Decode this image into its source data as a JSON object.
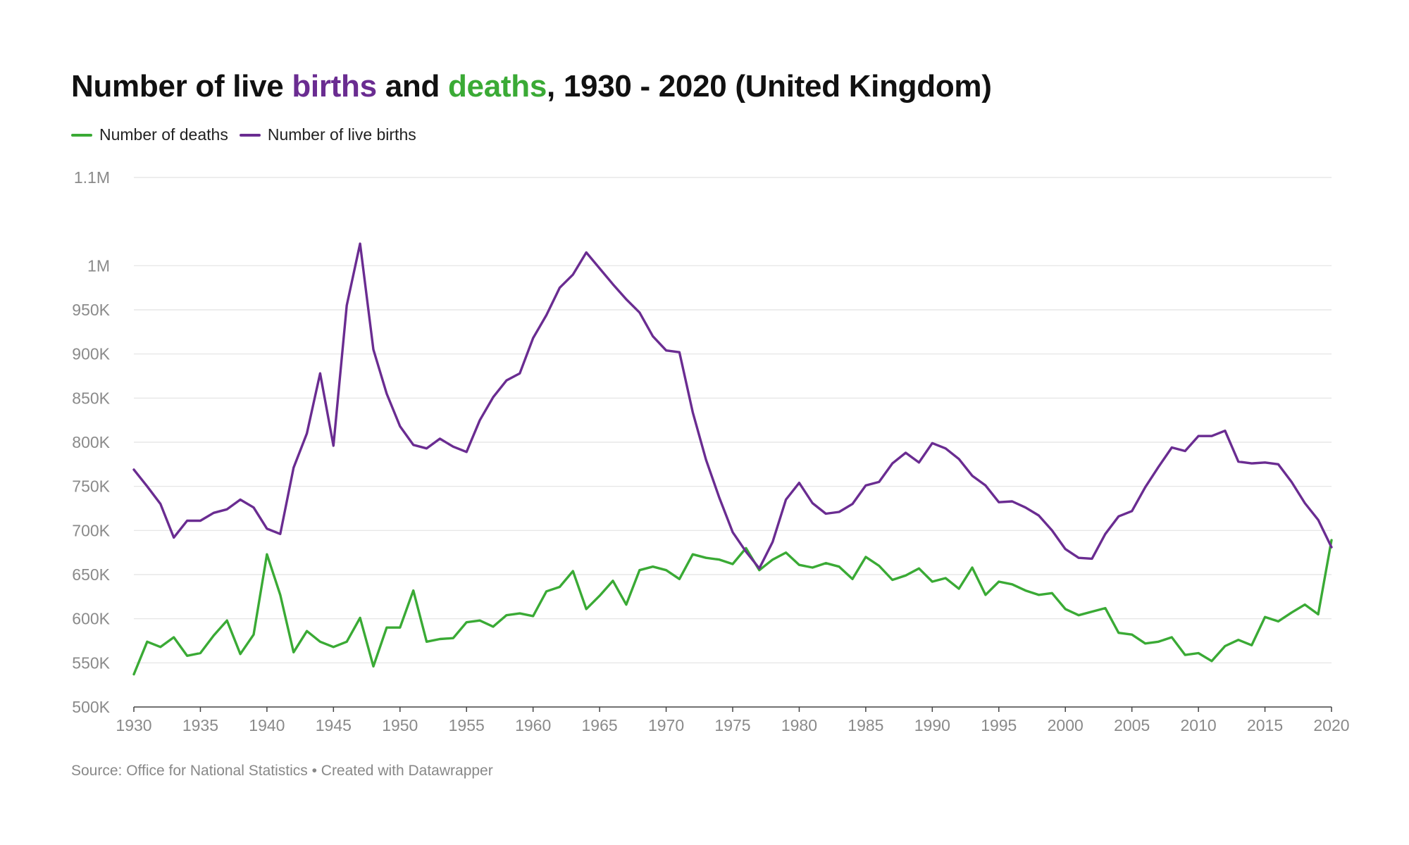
{
  "title": {
    "prefix": "Number of live ",
    "births_word": "births",
    "middle": " and ",
    "deaths_word": "deaths",
    "suffix": ", 1930 - 2020 (United Kingdom)"
  },
  "legend": [
    {
      "label": "Number of deaths",
      "color": "#3aaa35"
    },
    {
      "label": "Number of live births",
      "color": "#6a2c91"
    }
  ],
  "source": "Source: Office for National Statistics • Created with Datawrapper",
  "chart_data": {
    "type": "line",
    "x_label": "",
    "y_label": "",
    "xlim": [
      1930,
      2020
    ],
    "ylim": [
      500000,
      1100000
    ],
    "y_ticks": [
      500000,
      550000,
      600000,
      650000,
      700000,
      750000,
      800000,
      850000,
      900000,
      950000,
      1000000,
      1100000
    ],
    "y_tick_labels": [
      "500K",
      "550K",
      "600K",
      "650K",
      "700K",
      "750K",
      "800K",
      "850K",
      "900K",
      "950K",
      "1M",
      "1.1M"
    ],
    "x_ticks": [
      1930,
      1935,
      1940,
      1945,
      1950,
      1955,
      1960,
      1965,
      1970,
      1975,
      1980,
      1985,
      1990,
      1995,
      2000,
      2005,
      2010,
      2015,
      2020
    ],
    "x_tick_labels": [
      "1930",
      "1935",
      "1940",
      "1945",
      "1950",
      "1955",
      "1960",
      "1965",
      "1970",
      "1975",
      "1980",
      "1985",
      "1990",
      "1995",
      "2000",
      "2005",
      "2010",
      "2015",
      "2020"
    ],
    "grid": true,
    "legend_position": "top-left",
    "x": [
      1930,
      1931,
      1932,
      1933,
      1934,
      1935,
      1936,
      1937,
      1938,
      1939,
      1940,
      1941,
      1942,
      1943,
      1944,
      1945,
      1946,
      1947,
      1948,
      1949,
      1950,
      1951,
      1952,
      1953,
      1954,
      1955,
      1956,
      1957,
      1958,
      1959,
      1960,
      1961,
      1962,
      1963,
      1964,
      1965,
      1966,
      1967,
      1968,
      1969,
      1970,
      1971,
      1972,
      1973,
      1974,
      1975,
      1976,
      1977,
      1978,
      1979,
      1980,
      1981,
      1982,
      1983,
      1984,
      1985,
      1986,
      1987,
      1988,
      1989,
      1990,
      1991,
      1992,
      1993,
      1994,
      1995,
      1996,
      1997,
      1998,
      1999,
      2000,
      2001,
      2002,
      2003,
      2004,
      2005,
      2006,
      2007,
      2008,
      2009,
      2010,
      2011,
      2012,
      2013,
      2014,
      2015,
      2016,
      2017,
      2018,
      2019,
      2020
    ],
    "series": [
      {
        "name": "Number of deaths",
        "color": "#3aaa35",
        "values": [
          537000,
          574000,
          568000,
          579000,
          558000,
          561000,
          581000,
          598000,
          560000,
          582000,
          673000,
          627000,
          562000,
          586000,
          574000,
          568000,
          574000,
          601000,
          546000,
          590000,
          590000,
          632000,
          574000,
          577000,
          578000,
          596000,
          598000,
          591000,
          604000,
          606000,
          603000,
          631000,
          636000,
          654000,
          611000,
          626000,
          643000,
          616000,
          655000,
          659000,
          655000,
          645000,
          673000,
          669000,
          667000,
          662000,
          680000,
          655000,
          667000,
          675000,
          661000,
          658000,
          663000,
          659000,
          645000,
          670000,
          660000,
          644000,
          649000,
          657000,
          642000,
          646000,
          634000,
          658000,
          627000,
          642000,
          639000,
          632000,
          627000,
          629000,
          611000,
          604000,
          608000,
          612000,
          584000,
          582000,
          572000,
          574000,
          579000,
          559000,
          561000,
          552000,
          569000,
          576000,
          570000,
          602000,
          597000,
          607000,
          616000,
          605000,
          689000
        ]
      },
      {
        "name": "Number of live births",
        "color": "#6a2c91",
        "values": [
          769000,
          750000,
          730000,
          692000,
          711000,
          711000,
          720000,
          724000,
          735000,
          726000,
          702000,
          696000,
          771000,
          810000,
          878000,
          796000,
          955000,
          1025000,
          905000,
          855000,
          818000,
          797000,
          793000,
          804000,
          795000,
          789000,
          825000,
          851000,
          870000,
          878000,
          918000,
          944000,
          975000,
          990000,
          1015000,
          997000,
          979000,
          962000,
          947000,
          920000,
          904000,
          902000,
          834000,
          780000,
          737000,
          698000,
          676000,
          657000,
          687000,
          735000,
          754000,
          731000,
          719000,
          721000,
          730000,
          751000,
          755000,
          776000,
          788000,
          777000,
          799000,
          793000,
          781000,
          762000,
          751000,
          732000,
          733000,
          726000,
          717000,
          700000,
          679000,
          669000,
          668000,
          696000,
          716000,
          722000,
          749000,
          772000,
          794000,
          790000,
          807000,
          807000,
          813000,
          778000,
          776000,
          777000,
          775000,
          755000,
          731000,
          712000,
          681000
        ]
      }
    ]
  }
}
